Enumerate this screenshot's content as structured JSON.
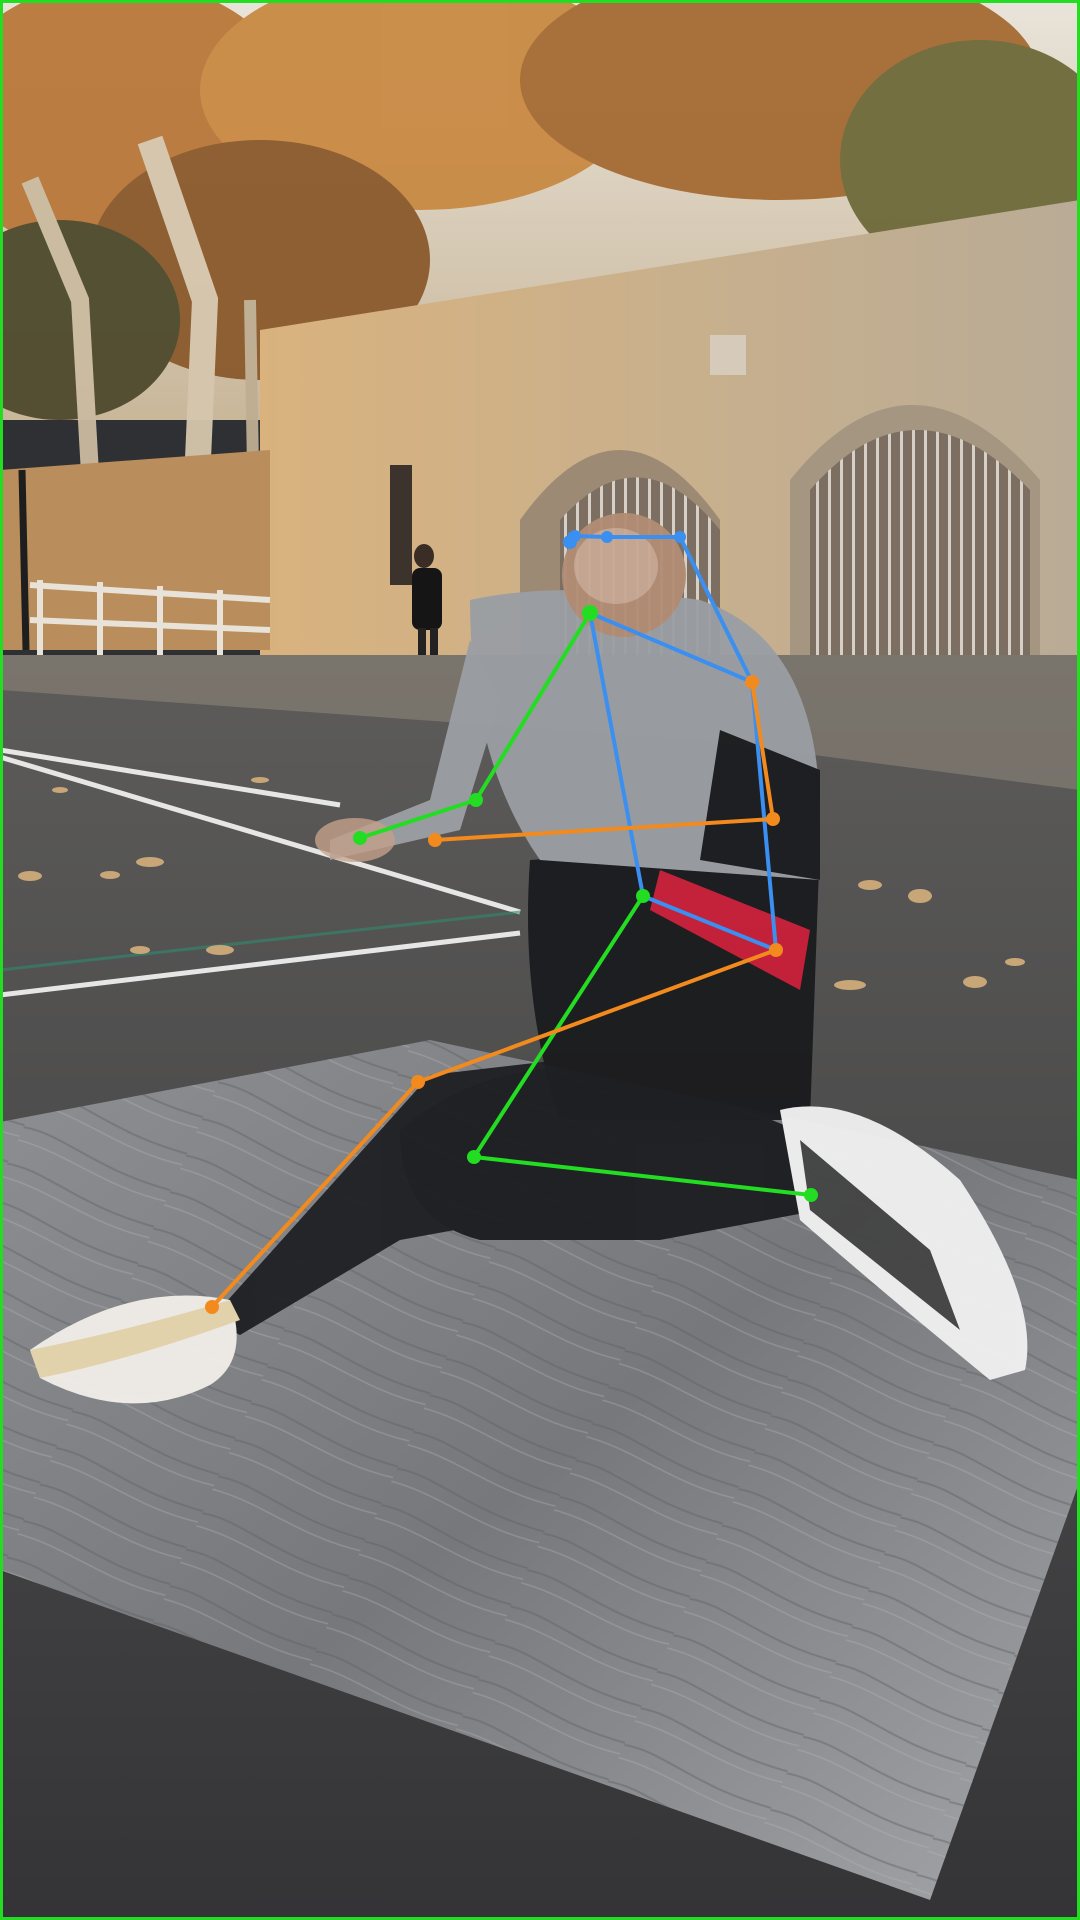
{
  "image": {
    "description_kind": "photo with pose skeleton overlay",
    "frame_color": "#22dd22"
  },
  "pose_overlay": {
    "colors": {
      "center": "#3b8ff0",
      "left": "#22dd22",
      "right": "#f28a1e"
    }
  }
}
